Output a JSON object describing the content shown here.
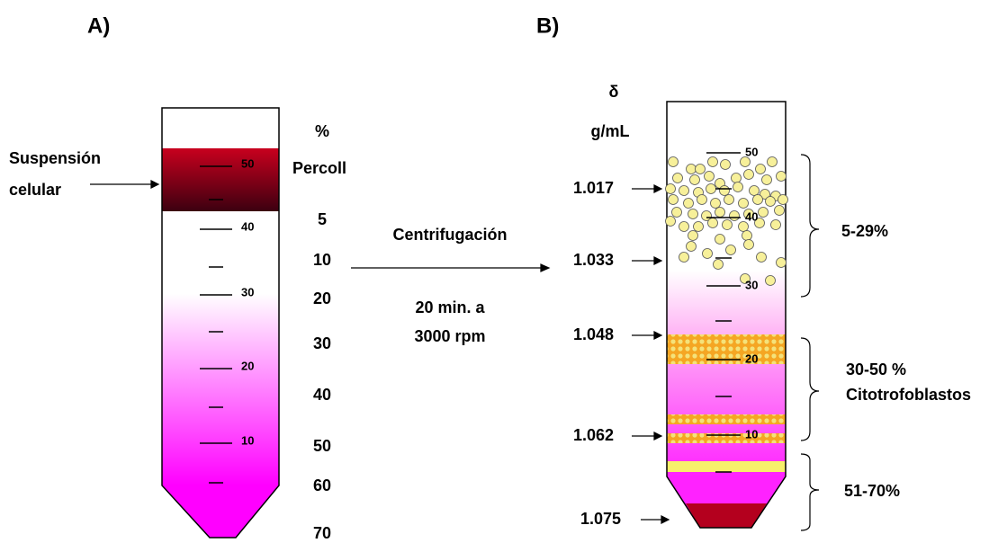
{
  "panel_a": {
    "label": "A)",
    "left_label": [
      "Suspensión",
      "celular"
    ],
    "percent_header": "%",
    "percoll_label": "Percoll",
    "graduations": [
      "50",
      "40",
      "30",
      "20",
      "10"
    ],
    "percentages": [
      "5",
      "10",
      "20",
      "30",
      "40",
      "50",
      "60",
      "70"
    ]
  },
  "process": {
    "label": "Centrifugación",
    "conditions": [
      "20 min. a",
      "3000 rpm"
    ]
  },
  "panel_b": {
    "label": "B)",
    "density_symbol": "δ",
    "density_unit": "g/mL",
    "densities": [
      "1.017",
      "1.033",
      "1.048",
      "1.062",
      "1.075"
    ],
    "graduations": [
      "50",
      "40",
      "30",
      "20",
      "10"
    ],
    "fractions": [
      "5-29%",
      "30-50 %",
      "Citotrofoblastos",
      "51-70%"
    ]
  }
}
